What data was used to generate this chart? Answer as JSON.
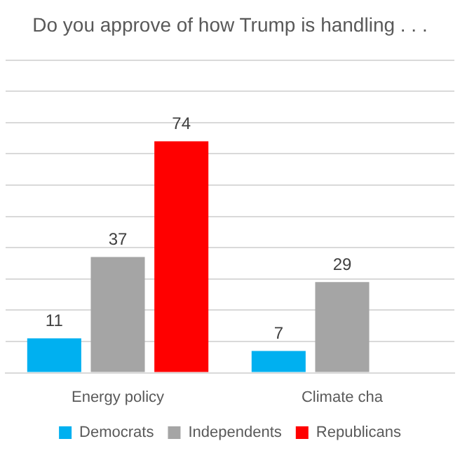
{
  "chart_data": {
    "type": "bar",
    "title": "Do you approve of how Trump is handling . . .",
    "categories": [
      "Energy policy",
      "Climate cha"
    ],
    "series": [
      {
        "name": "Democrats",
        "color": "#00b0f0",
        "values": [
          11,
          7
        ]
      },
      {
        "name": "Independents",
        "color": "#a5a5a5",
        "values": [
          37,
          29
        ]
      },
      {
        "name": "Republicans",
        "color": "#ff0000",
        "values": [
          74,
          null
        ]
      }
    ],
    "ylim": [
      0,
      100
    ],
    "yticks": [
      {
        "value": 0,
        "label": null
      },
      {
        "value": 10,
        "label": null
      },
      {
        "value": 20,
        "label": null
      },
      {
        "value": 30,
        "label": null
      },
      {
        "value": 40,
        "label": null
      },
      {
        "value": 50,
        "label": null
      },
      {
        "value": 60,
        "label": null
      },
      {
        "value": 70,
        "label": null
      },
      {
        "value": 80,
        "label": null
      },
      {
        "value": 90,
        "label": null
      },
      {
        "value": 100,
        "label": null
      }
    ],
    "tick_labels": "x",
    "grid": "y",
    "legend": "bottom",
    "data_labels": true
  }
}
